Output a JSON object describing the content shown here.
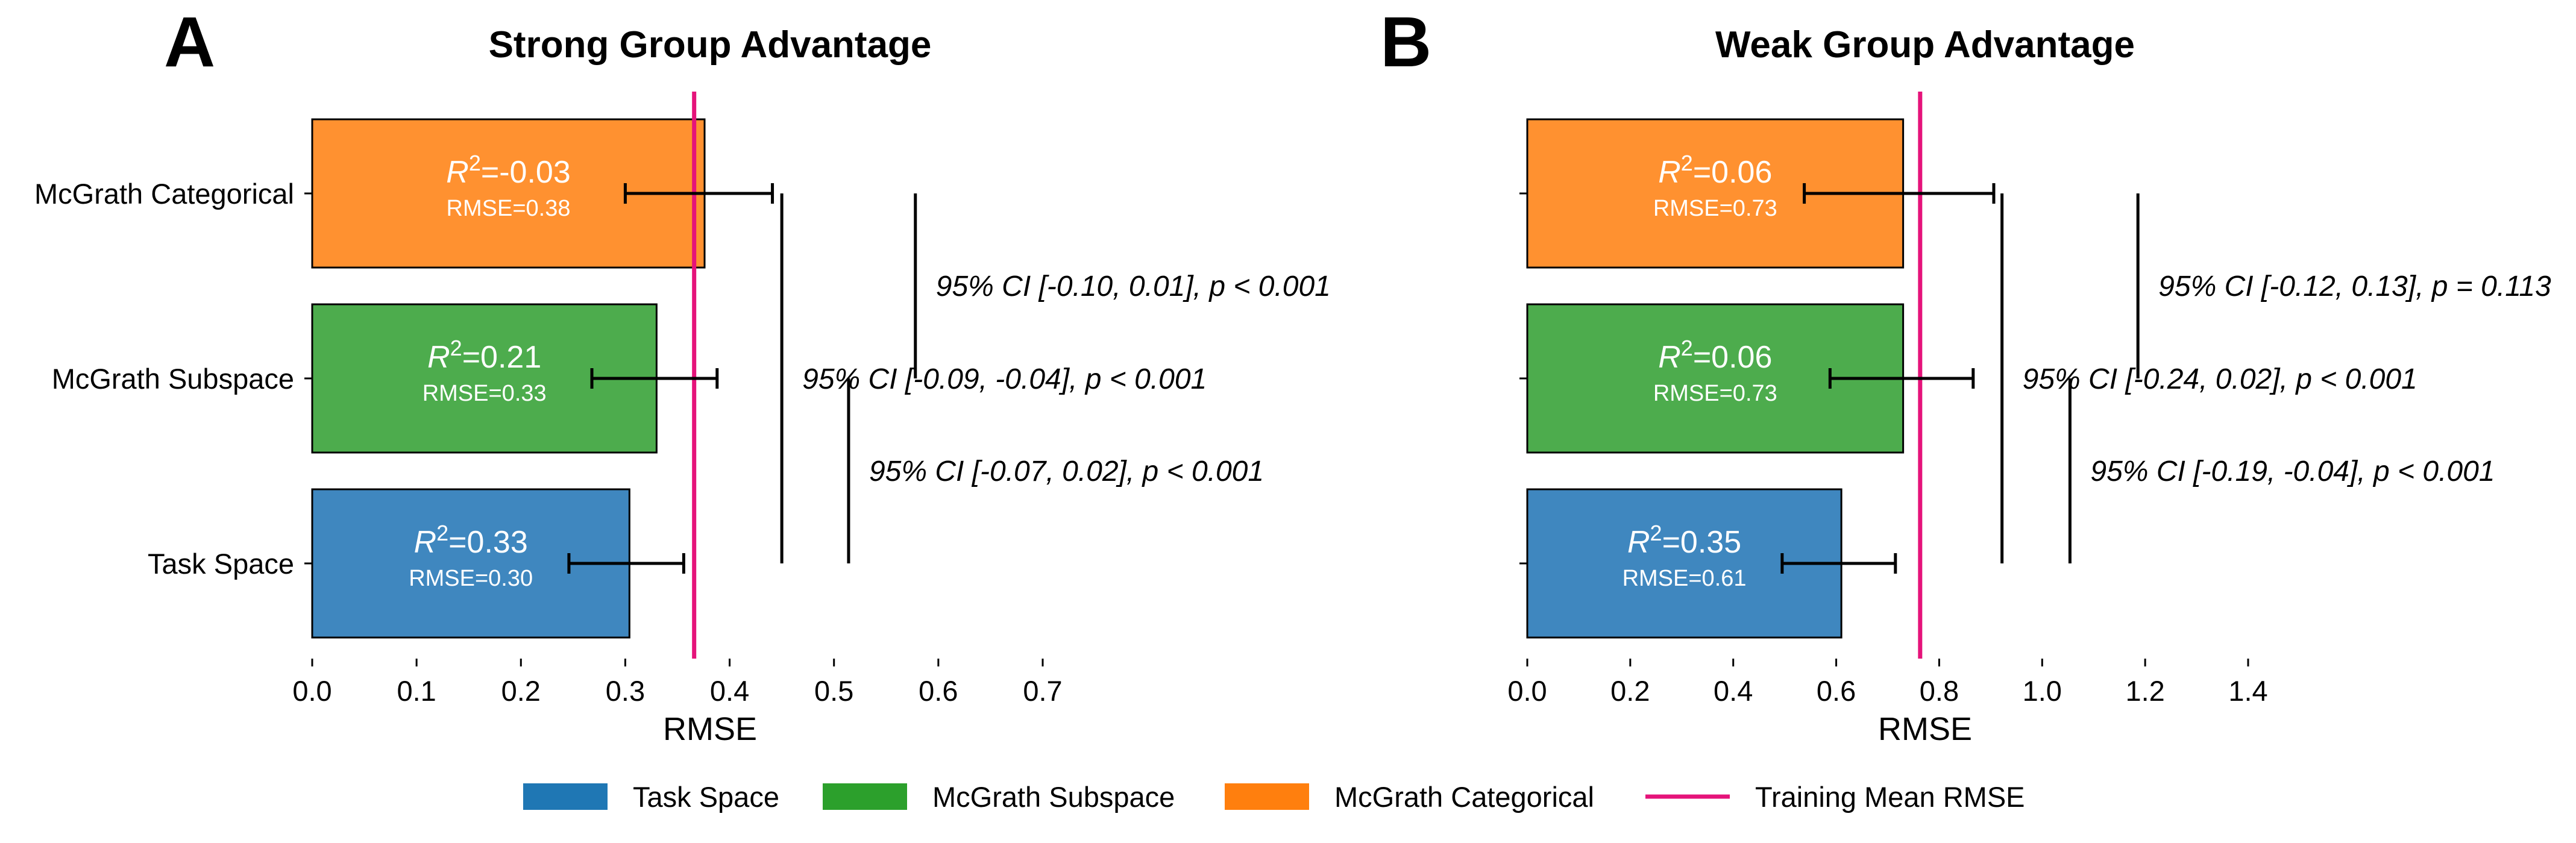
{
  "figure": {
    "legend": [
      {
        "label": "Task Space",
        "kind": "patch",
        "color": "#1f77b4"
      },
      {
        "label": "McGrath Subspace",
        "kind": "patch",
        "color": "#2ca02c"
      },
      {
        "label": "McGrath Categorical",
        "kind": "patch",
        "color": "#ff7f0e"
      },
      {
        "label": "Training Mean RMSE",
        "kind": "line",
        "color": "#e5137a"
      }
    ]
  },
  "chart_data": [
    {
      "type": "bar",
      "orientation": "horizontal",
      "panel_letter": "A",
      "title": "Strong Group Advantage",
      "xlabel": "RMSE",
      "ylabel": "",
      "xlim": [
        0,
        0.7
      ],
      "xticks": [
        "0.0",
        "0.1",
        "0.2",
        "0.3",
        "0.4",
        "0.5",
        "0.6",
        "0.7"
      ],
      "categories": [
        "McGrath Categorical",
        "McGrath Subspace",
        "Task Space"
      ],
      "values": [
        0.376,
        0.33,
        0.304
      ],
      "error_low": [
        0.3,
        0.268,
        0.246
      ],
      "error_high": [
        0.441,
        0.388,
        0.356
      ],
      "bar_colors": [
        "#ff9130",
        "#4dac4d",
        "#3f87bf"
      ],
      "r2_labels": [
        "=-0.03",
        "=0.21",
        "=0.33"
      ],
      "rmse_labels": [
        "RMSE=0.38",
        "RMSE=0.33",
        "RMSE=0.30"
      ],
      "reference_line": {
        "label": "Training Mean RMSE",
        "x": 0.366,
        "color": "#e5137a"
      },
      "comparisons": [
        {
          "from": "McGrath Categorical",
          "to": "Task Space",
          "x": 0.45,
          "text": "95% CI [-0.09, -0.04], p < 0.001"
        },
        {
          "from": "Task Space",
          "to": "McGrath Subspace",
          "x": 0.514,
          "text": "95% CI [-0.07, 0.02], p < 0.001"
        },
        {
          "from": "McGrath Categorical",
          "to": "McGrath Subspace",
          "x": 0.578,
          "text": "95% CI [-0.10, 0.01], p < 0.001"
        }
      ]
    },
    {
      "type": "bar",
      "orientation": "horizontal",
      "panel_letter": "B",
      "title": "Weak Group Advantage",
      "xlabel": "RMSE",
      "ylabel": "",
      "xlim": [
        0,
        1.4
      ],
      "xticks": [
        "0.0",
        "0.2",
        "0.4",
        "0.6",
        "0.8",
        "1.0",
        "1.2",
        "1.4"
      ],
      "categories": [
        "McGrath Categorical",
        "McGrath Subspace",
        "Task Space"
      ],
      "values": [
        0.73,
        0.73,
        0.61
      ],
      "error_low": [
        0.538,
        0.588,
        0.495
      ],
      "error_high": [
        0.906,
        0.866,
        0.715
      ],
      "bar_colors": [
        "#ff9130",
        "#4dac4d",
        "#3f87bf"
      ],
      "r2_labels": [
        "=0.06",
        "=0.06",
        "=0.35"
      ],
      "rmse_labels": [
        "RMSE=0.73",
        "RMSE=0.73",
        "RMSE=0.61"
      ],
      "reference_line": {
        "label": "Training Mean RMSE",
        "x": 0.763,
        "color": "#e5137a"
      },
      "comparisons": [
        {
          "from": "McGrath Categorical",
          "to": "Task Space",
          "x": 0.922,
          "text": "95% CI [-0.24, 0.02], p < 0.001"
        },
        {
          "from": "Task Space",
          "to": "McGrath Subspace",
          "x": 1.054,
          "text": "95% CI [-0.19, -0.04], p < 0.001"
        },
        {
          "from": "McGrath Categorical",
          "to": "McGrath Subspace",
          "x": 1.186,
          "text": "95% CI [-0.12, 0.13], p = 0.113"
        }
      ]
    }
  ]
}
